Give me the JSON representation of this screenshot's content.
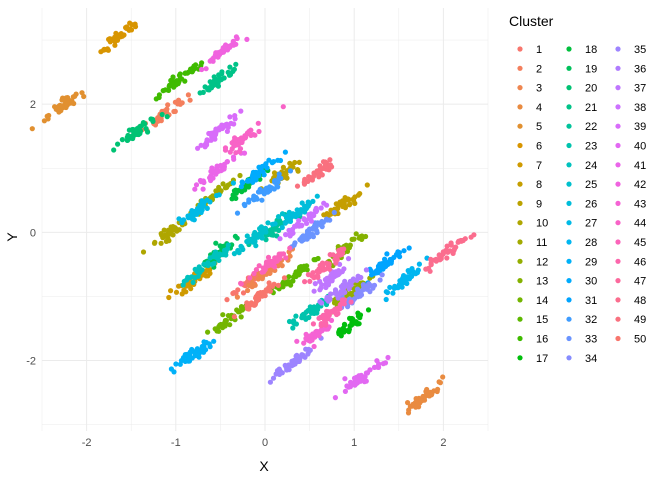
{
  "chart_data": {
    "type": "scatter",
    "title": "",
    "xlabel": "X",
    "ylabel": "Y",
    "xlim": [
      -2.5,
      2.5
    ],
    "ylim": [
      -3.1,
      3.5
    ],
    "x_ticks": [
      -2,
      -1,
      0,
      1,
      2
    ],
    "y_ticks": [
      -2,
      0,
      2
    ],
    "x_tick_labels": [
      "-2",
      "-1",
      "0",
      "1",
      "2"
    ],
    "y_tick_labels": [
      "-2",
      "0",
      "2"
    ],
    "grid": true,
    "legend_position": "right",
    "legend_title": "Cluster",
    "legend_labels": [
      "1",
      "2",
      "3",
      "4",
      "5",
      "6",
      "7",
      "8",
      "9",
      "10",
      "11",
      "12",
      "13",
      "14",
      "15",
      "16",
      "17",
      "18",
      "19",
      "20",
      "21",
      "22",
      "23",
      "24",
      "25",
      "26",
      "27",
      "28",
      "29",
      "30",
      "31",
      "32",
      "33",
      "34",
      "35",
      "36",
      "37",
      "38",
      "39",
      "40",
      "41",
      "42",
      "43",
      "44",
      "45",
      "46",
      "47",
      "48",
      "49",
      "50"
    ],
    "series": [
      {
        "name": "1",
        "cx": -0.15,
        "cy": -0.75,
        "color": "#F8766D"
      },
      {
        "name": "2",
        "cx": -1.12,
        "cy": 1.85,
        "color": "#F47F5D"
      },
      {
        "name": "3",
        "cx": 0.05,
        "cy": -0.6,
        "color": "#EF8650"
      },
      {
        "name": "4",
        "cx": 1.8,
        "cy": -2.55,
        "color": "#E98B40"
      },
      {
        "name": "5",
        "cx": -2.25,
        "cy": 2.0,
        "color": "#E19030"
      },
      {
        "name": "6",
        "cx": -1.65,
        "cy": 3.05,
        "color": "#D89500"
      },
      {
        "name": "7",
        "cx": -0.8,
        "cy": -0.75,
        "color": "#CF9A00"
      },
      {
        "name": "8",
        "cx": 0.85,
        "cy": 0.4,
        "color": "#C59E00"
      },
      {
        "name": "9",
        "cx": 0.2,
        "cy": 0.9,
        "color": "#BBA200"
      },
      {
        "name": "10",
        "cx": -1.08,
        "cy": 0.0,
        "color": "#AFA600"
      },
      {
        "name": "11",
        "cx": -0.6,
        "cy": 0.55,
        "color": "#A2AA00"
      },
      {
        "name": "12",
        "cx": 0.95,
        "cy": -0.95,
        "color": "#94AE00"
      },
      {
        "name": "13",
        "cx": 0.9,
        "cy": -0.25,
        "color": "#84B100"
      },
      {
        "name": "14",
        "cx": -0.45,
        "cy": -1.4,
        "color": "#73B500"
      },
      {
        "name": "15",
        "cx": 0.35,
        "cy": -0.65,
        "color": "#5DB800"
      },
      {
        "name": "16",
        "cx": -0.95,
        "cy": 2.4,
        "color": "#3FBB00"
      },
      {
        "name": "17",
        "cx": 0.95,
        "cy": -1.45,
        "color": "#00BE0C"
      },
      {
        "name": "18",
        "cx": -0.2,
        "cy": 0.75,
        "color": "#00BF3D"
      },
      {
        "name": "19",
        "cx": -0.5,
        "cy": -0.3,
        "color": "#00C15B"
      },
      {
        "name": "20",
        "cx": -1.4,
        "cy": 1.6,
        "color": "#00C273"
      },
      {
        "name": "21",
        "cx": -0.55,
        "cy": 2.35,
        "color": "#00C388"
      },
      {
        "name": "22",
        "cx": 0.15,
        "cy": 0.1,
        "color": "#00C39B"
      },
      {
        "name": "23",
        "cx": 0.5,
        "cy": -1.25,
        "color": "#00C3AD"
      },
      {
        "name": "24",
        "cx": -0.65,
        "cy": -0.5,
        "color": "#00C2BE"
      },
      {
        "name": "25",
        "cx": -0.15,
        "cy": -0.1,
        "color": "#00C0CD"
      },
      {
        "name": "26",
        "cx": 0.35,
        "cy": 0.3,
        "color": "#00BDDA"
      },
      {
        "name": "27",
        "cx": -0.75,
        "cy": 0.35,
        "color": "#00BAE6"
      },
      {
        "name": "28",
        "cx": 1.55,
        "cy": -0.75,
        "color": "#00B6F0"
      },
      {
        "name": "29",
        "cx": -0.8,
        "cy": -1.9,
        "color": "#00B1F8"
      },
      {
        "name": "30",
        "cx": -0.05,
        "cy": 0.95,
        "color": "#00ABFD"
      },
      {
        "name": "31",
        "cx": 1.35,
        "cy": -0.5,
        "color": "#00A4FF"
      },
      {
        "name": "32",
        "cx": 0.0,
        "cy": 0.65,
        "color": "#3E9CFF"
      },
      {
        "name": "33",
        "cx": 0.55,
        "cy": 0.05,
        "color": "#6A94FF"
      },
      {
        "name": "34",
        "cx": 1.05,
        "cy": -0.95,
        "color": "#868CFF"
      },
      {
        "name": "35",
        "cx": 0.35,
        "cy": -2.0,
        "color": "#9D84FF"
      },
      {
        "name": "36",
        "cx": 0.85,
        "cy": -0.9,
        "color": "#AF7CFF"
      },
      {
        "name": "37",
        "cx": 0.7,
        "cy": -0.75,
        "color": "#BF76FF"
      },
      {
        "name": "38",
        "cx": 0.45,
        "cy": 0.2,
        "color": "#CC71FF"
      },
      {
        "name": "39",
        "cx": -0.55,
        "cy": 1.55,
        "color": "#D86CFA"
      },
      {
        "name": "40",
        "cx": 1.1,
        "cy": -2.25,
        "color": "#E268F2"
      },
      {
        "name": "41",
        "cx": -0.55,
        "cy": 0.95,
        "color": "#EA65E9"
      },
      {
        "name": "42",
        "cx": -0.45,
        "cy": 2.85,
        "color": "#F063DF"
      },
      {
        "name": "43",
        "cx": 0.55,
        "cy": -1.6,
        "color": "#F563D4"
      },
      {
        "name": "44",
        "cx": -0.25,
        "cy": 1.45,
        "color": "#F863C7"
      },
      {
        "name": "45",
        "cx": 0.05,
        "cy": -0.5,
        "color": "#FB64BA"
      },
      {
        "name": "46",
        "cx": 0.75,
        "cy": -1.25,
        "color": "#FC66AC"
      },
      {
        "name": "47",
        "cx": 0.65,
        "cy": -0.55,
        "color": "#FC699D"
      },
      {
        "name": "48",
        "cx": 2.05,
        "cy": -0.3,
        "color": "#FB6D8E"
      },
      {
        "name": "49",
        "cx": 0.6,
        "cy": 0.95,
        "color": "#F9717F"
      },
      {
        "name": "50",
        "cx": -0.05,
        "cy": -1.0,
        "color": "#F8766D"
      }
    ]
  }
}
